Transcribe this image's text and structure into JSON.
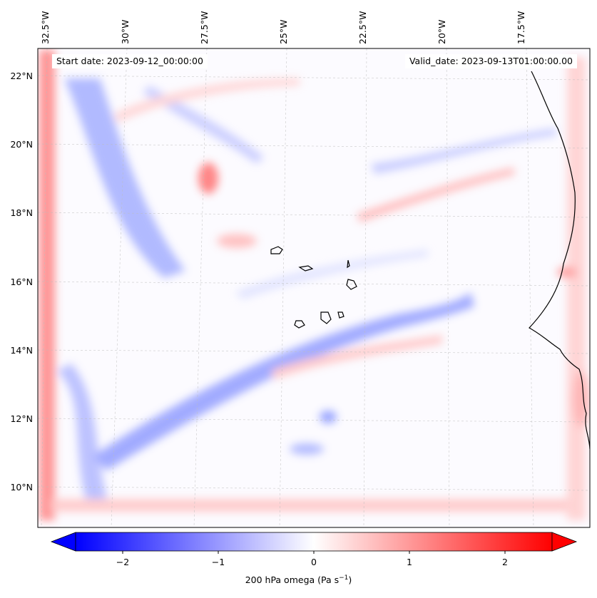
{
  "map": {
    "start_date_label": "Start date: 2023-09-12_00:00:00",
    "valid_date_label": "Valid_date: 2023-09-13T01:00:00.00",
    "lon_ticks": [
      "32.5°W",
      "30°W",
      "27.5°W",
      "25°W",
      "22.5°W",
      "20°W",
      "17.5°W"
    ],
    "lat_ticks": [
      "22°N",
      "20°N",
      "18°N",
      "16°N",
      "14°N",
      "12°N",
      "10°N"
    ],
    "gridlines": true,
    "coastline_color": "#000000"
  },
  "colorbar": {
    "label_text": "200 hPa omega (Pa s",
    "label_sup": "−1",
    "label_close": ")",
    "ticks": [
      "−2",
      "−1",
      "0",
      "1",
      "2"
    ],
    "range": [
      -2.7,
      2.7
    ],
    "colormap": "bwr",
    "extend": "both",
    "color_low": "#0000ff",
    "color_mid": "#ffffff",
    "color_high": "#ff0000"
  }
}
